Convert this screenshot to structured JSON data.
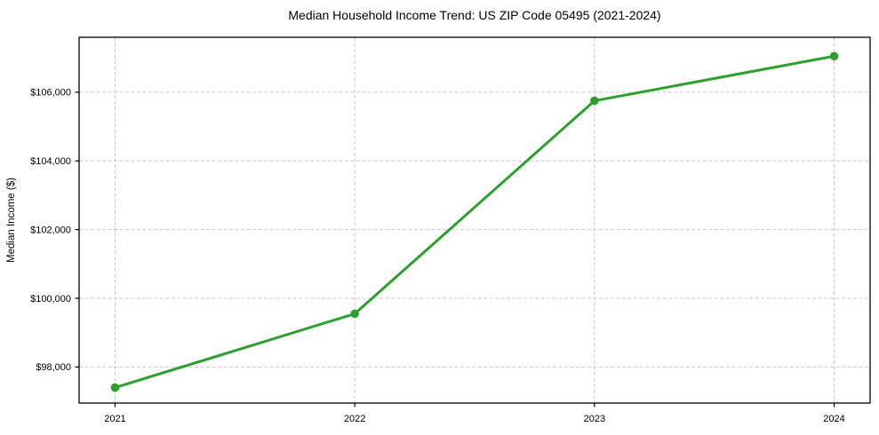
{
  "chart_data": {
    "type": "line",
    "title": "Median Household Income Trend: US ZIP Code 05495 (2021-2024)",
    "xlabel": "",
    "ylabel": "Median Income ($)",
    "x": [
      2021,
      2022,
      2023,
      2024
    ],
    "series": [
      {
        "name": "Median Household Income",
        "values": [
          97400,
          99550,
          105750,
          107050
        ]
      }
    ],
    "xticks": [
      2021,
      2022,
      2023,
      2024
    ],
    "xtick_labels": [
      "2021",
      "2022",
      "2023",
      "2024"
    ],
    "yticks": [
      98000,
      100000,
      102000,
      104000,
      106000
    ],
    "ytick_labels": [
      "$98,000",
      "$100,000",
      "$102,000",
      "$104,000",
      "$106,000"
    ],
    "xlim": [
      2020.85,
      2024.15
    ],
    "ylim": [
      96950,
      107600
    ],
    "grid": true,
    "grid_style": "dashed",
    "legend_position": "none",
    "colors": {
      "line": "#2ca02c",
      "marker": "#2ca02c",
      "grid": "#c9c9c9",
      "frame": "#000000",
      "text": "#000000",
      "background": "#ffffff"
    }
  }
}
